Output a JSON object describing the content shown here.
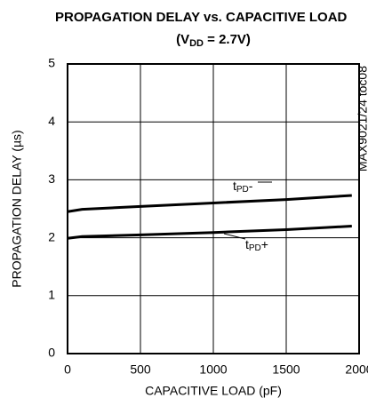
{
  "chart_data": {
    "type": "line",
    "title": "PROPAGATION DELAY vs. CAPACITIVE LOAD",
    "subtitle": [
      "(V",
      "DD",
      " = 2.7V)"
    ],
    "xlabel": "CAPACITIVE LOAD (pF)",
    "ylabel": "PROPAGATION DELAY (µs)",
    "x": [
      0,
      100,
      500,
      1000,
      1500,
      1950
    ],
    "series": [
      {
        "color": "#000000",
        "values": [
          2.45,
          2.49,
          2.54,
          2.6,
          2.66,
          2.73
        ]
      },
      {
        "color": "#000000",
        "values": [
          1.99,
          2.02,
          2.05,
          2.09,
          2.14,
          2.2
        ]
      }
    ],
    "xlim": [
      0,
      2000
    ],
    "xticks": [
      0,
      500,
      1000,
      1500,
      2000
    ],
    "ylim": [
      0,
      5
    ],
    "yticks": [
      0,
      1,
      2,
      3,
      4,
      5
    ],
    "grid": true,
    "annotations": [
      {
        "parts": [
          "t",
          "PD",
          "-"
        ]
      },
      {
        "parts": [
          "t",
          "PD",
          "+"
        ]
      },
      {
        "text": "MAX9021/24 toc08"
      }
    ]
  }
}
